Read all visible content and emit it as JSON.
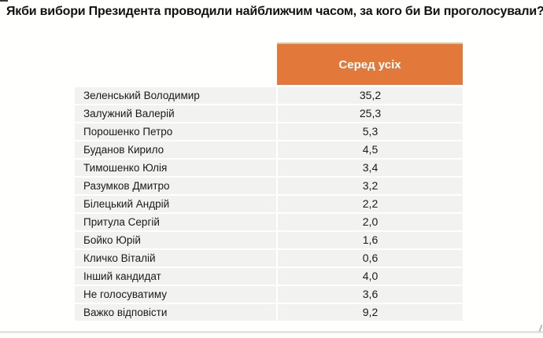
{
  "page": {
    "title": "Якби вибори Президента проводили найближчим часом, за кого би Ви проголосували?"
  },
  "table": {
    "header": "Серед усіх",
    "rows": [
      {
        "name": "Зеленський Володимир",
        "value": "35,2"
      },
      {
        "name": "Залужний Валерій",
        "value": "25,3"
      },
      {
        "name": "Порошенко Петро",
        "value": "5,3"
      },
      {
        "name": "Буданов Кирило",
        "value": "4,5"
      },
      {
        "name": "Тимошенко Юлія",
        "value": "3,4"
      },
      {
        "name": "Разумков Дмитро",
        "value": "3,2"
      },
      {
        "name": "Білецький Андрій",
        "value": "2,2"
      },
      {
        "name": "Притула Сергій",
        "value": "2,0"
      },
      {
        "name": "Бойко Юрій",
        "value": "1,6"
      },
      {
        "name": "Кличко Віталій",
        "value": "0,6"
      },
      {
        "name": "Інший кандидат",
        "value": "4,0"
      },
      {
        "name": "Не голосуватиму",
        "value": "3,6"
      },
      {
        "name": "Важко відповісти",
        "value": "9,2"
      }
    ]
  },
  "colors": {
    "header_bg": "#E2793A",
    "header_text": "#FFFFFF",
    "row_bg": "#F2F2F0",
    "text": "#1A1A1A",
    "page_bg": "#FFFFFE"
  },
  "chart_data": {
    "type": "table",
    "title": "Якби вибори Президента проводили найближчим часом, за кого би Ви проголосували?",
    "column_header": "Серед усіх",
    "categories": [
      "Зеленський Володимир",
      "Залужний Валерій",
      "Порошенко Петро",
      "Буданов Кирило",
      "Тимошенко Юлія",
      "Разумков Дмитро",
      "Білецький Андрій",
      "Притула Сергій",
      "Бойко Юрій",
      "Кличко Віталій",
      "Інший кандидат",
      "Не голосуватиму",
      "Важко відповісти"
    ],
    "values": [
      35.2,
      25.3,
      5.3,
      4.5,
      3.4,
      3.2,
      2.2,
      2.0,
      1.6,
      0.6,
      4.0,
      3.6,
      9.2
    ],
    "unit": "percent"
  }
}
